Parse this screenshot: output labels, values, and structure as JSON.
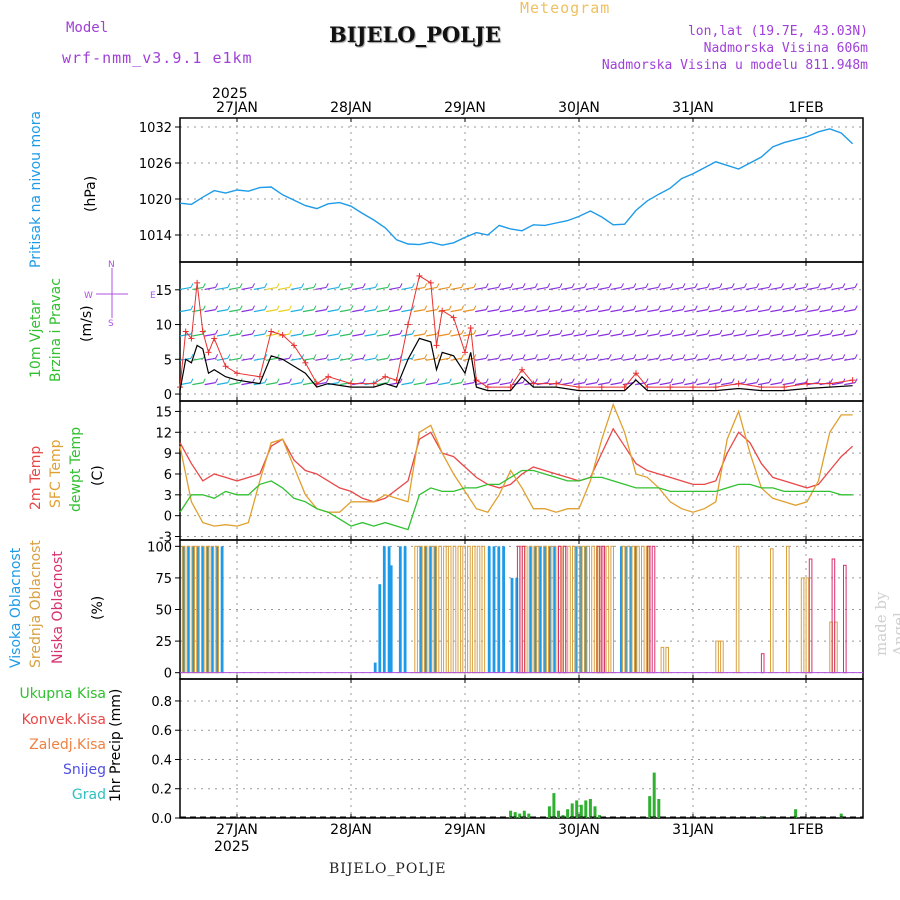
{
  "header": {
    "model_label": "Model",
    "model_name": "wrf-nmm_v3.9.1 e1km",
    "station": "BIJELO_POLJE",
    "product": "Meteogram",
    "coords": "lon,lat (19.7E, 43.03N)",
    "elevation": "Nadmorska Visina 606m",
    "model_elevation": "Nadmorska Visina u modelu 811.948m"
  },
  "dates": {
    "year_label": "2025",
    "labels": [
      "27JAN",
      "28JAN",
      "29JAN",
      "30JAN",
      "31JAN",
      "1FEB"
    ]
  },
  "footer": {
    "station": "BIJELO_POLJE"
  },
  "watermark": "made by Angel",
  "panels": {
    "pressure": {
      "label": "Pritisak na nivou mora",
      "unit": "(hPa)"
    },
    "wind": {
      "label_line1": "10m Vjetar",
      "label_line2": "Brzina i Pravac",
      "unit": "(m/s)",
      "compass": {
        "n": "N",
        "s": "S",
        "w": "W",
        "e": "E"
      }
    },
    "temp": {
      "label_2m": "2m Temp",
      "label_sfc": "SFC Temp",
      "label_dewpt": "dewpt Temp",
      "unit": "(C)"
    },
    "cloud": {
      "label_high": "Visoka Oblacnost",
      "label_mid": "Srednja Oblacnost",
      "label_low": "Niska Oblacnost",
      "unit": "(%)"
    },
    "precip": {
      "label": "1hr Precip (mm)",
      "legend": {
        "total": "Ukupna Kisa",
        "convective": "Konvek.Kisa",
        "frozen": "Zaledj.Kisa",
        "snow": "Snijeg",
        "graupel": "Grad"
      }
    }
  },
  "colors": {
    "pressure": "#1e9be8",
    "temp2m": "#e84848",
    "sfc": "#e0a030",
    "dewpt": "#30c030",
    "cloud_high": "#1e9be8",
    "cloud_mid": "#d8a040",
    "cloud_low": "#d8306c",
    "precip_total": "#30b030",
    "header_purple": "#a040d8",
    "wind_speed": "#000000",
    "wind_gust": "#e83030"
  },
  "chart_data": [
    {
      "type": "line",
      "name": "pressure",
      "ylabel": "(hPa)",
      "ylim": [
        1009.5,
        1033.5
      ],
      "yticks": [
        1014,
        1020,
        1026,
        1032
      ],
      "xlim": [
        -0.5,
        5.4
      ],
      "x": [
        -0.5,
        -0.4,
        -0.3,
        -0.2,
        -0.1,
        0.0,
        0.1,
        0.2,
        0.3,
        0.4,
        0.6,
        0.7,
        0.8,
        0.9,
        1.0,
        1.1,
        1.2,
        1.3,
        1.4,
        1.5,
        1.6,
        1.7,
        1.8,
        1.9,
        2.0,
        2.1,
        2.2,
        2.3,
        2.4,
        2.5,
        2.6,
        2.7,
        2.8,
        2.9,
        3.0,
        3.1,
        3.2,
        3.3,
        3.4,
        3.5,
        3.6,
        3.7,
        3.8,
        3.9,
        4.0,
        4.2,
        4.4,
        4.6,
        4.7,
        4.8,
        4.9,
        5.0,
        5.1,
        5.2,
        5.3,
        5.4
      ],
      "y": [
        1019.3,
        1019.1,
        1020.3,
        1021.4,
        1021.0,
        1021.5,
        1021.3,
        1021.9,
        1022.0,
        1020.7,
        1018.9,
        1018.4,
        1019.2,
        1019.4,
        1018.8,
        1017.6,
        1016.5,
        1015.2,
        1013.2,
        1012.5,
        1012.4,
        1012.8,
        1012.3,
        1012.7,
        1013.6,
        1014.4,
        1014.0,
        1015.6,
        1015.0,
        1014.7,
        1015.7,
        1015.6,
        1016.0,
        1016.4,
        1017.1,
        1018.0,
        1017.0,
        1015.7,
        1015.8,
        1018.1,
        1019.7,
        1020.8,
        1021.8,
        1023.4,
        1024.2,
        1026.2,
        1025.0,
        1027.0,
        1028.7,
        1029.4,
        1029.9,
        1030.4,
        1031.2,
        1031.7,
        1031.0,
        1029.2
      ]
    },
    {
      "type": "line",
      "name": "wind",
      "ylabel": "(m/s)",
      "ylim": [
        -1,
        19
      ],
      "yticks": [
        0,
        5,
        10,
        15
      ],
      "xlim": [
        -0.5,
        5.4
      ],
      "series": [
        {
          "key": "speed",
          "x": [
            -0.5,
            -0.45,
            -0.4,
            -0.35,
            -0.3,
            -0.25,
            -0.2,
            -0.1,
            0.0,
            0.2,
            0.3,
            0.4,
            0.5,
            0.6,
            0.7,
            0.8,
            1.0,
            1.2,
            1.3,
            1.4,
            1.5,
            1.6,
            1.7,
            1.75,
            1.8,
            1.9,
            2.0,
            2.05,
            2.1,
            2.2,
            2.4,
            2.5,
            2.6,
            2.8,
            3.0,
            3.2,
            3.4,
            3.5,
            3.6,
            3.8,
            4.0,
            4.2,
            4.4,
            4.6,
            4.8,
            5.0,
            5.2,
            5.4
          ],
          "y": [
            0.5,
            5.0,
            4.5,
            7.0,
            6.5,
            3.0,
            3.5,
            2.5,
            2.0,
            1.5,
            5.5,
            5.0,
            4.0,
            3.0,
            1.0,
            1.5,
            1.0,
            1.0,
            1.5,
            1.0,
            5.0,
            8.0,
            7.5,
            3.5,
            6.0,
            5.5,
            3.0,
            6.0,
            1.0,
            0.5,
            0.5,
            2.5,
            1.0,
            1.0,
            0.5,
            0.5,
            0.5,
            2.0,
            0.5,
            0.5,
            0.5,
            0.5,
            0.8,
            0.5,
            0.5,
            0.8,
            1.0,
            1.2
          ]
        },
        {
          "key": "gust",
          "x": [
            -0.5,
            -0.45,
            -0.4,
            -0.35,
            -0.3,
            -0.25,
            -0.2,
            -0.1,
            0.0,
            0.2,
            0.3,
            0.4,
            0.5,
            0.6,
            0.7,
            0.8,
            1.0,
            1.2,
            1.3,
            1.4,
            1.5,
            1.6,
            1.7,
            1.75,
            1.8,
            1.9,
            2.0,
            2.05,
            2.1,
            2.2,
            2.4,
            2.5,
            2.6,
            2.8,
            3.0,
            3.2,
            3.4,
            3.5,
            3.6,
            3.8,
            4.0,
            4.2,
            4.4,
            4.6,
            4.8,
            5.0,
            5.2,
            5.4
          ],
          "y": [
            1.0,
            9.0,
            8.0,
            16.0,
            9.0,
            6.0,
            8.0,
            4.0,
            3.0,
            2.5,
            9.0,
            8.5,
            7.0,
            4.5,
            1.5,
            2.5,
            1.5,
            1.5,
            2.5,
            2.0,
            10.0,
            17.0,
            16.0,
            7.0,
            12.0,
            11.0,
            6.0,
            9.5,
            2.0,
            1.0,
            1.0,
            3.5,
            1.5,
            1.5,
            1.0,
            1.0,
            1.0,
            3.0,
            1.0,
            1.0,
            1.0,
            1.0,
            1.5,
            1.0,
            1.0,
            1.5,
            1.5,
            2.0
          ]
        }
      ]
    },
    {
      "type": "line",
      "name": "temperature",
      "ylabel": "(C)",
      "ylim": [
        -3.5,
        16.5
      ],
      "yticks": [
        -3,
        0,
        3,
        6,
        9,
        12,
        15
      ],
      "xlim": [
        -0.5,
        5.4
      ],
      "series": [
        {
          "key": "t2m",
          "x": [
            -0.5,
            -0.4,
            -0.3,
            -0.2,
            -0.1,
            0.0,
            0.2,
            0.3,
            0.4,
            0.5,
            0.6,
            0.7,
            0.8,
            0.9,
            1.0,
            1.1,
            1.2,
            1.3,
            1.5,
            1.6,
            1.7,
            1.8,
            1.9,
            2.0,
            2.1,
            2.2,
            2.3,
            2.4,
            2.5,
            2.6,
            2.7,
            2.8,
            2.9,
            3.0,
            3.1,
            3.2,
            3.3,
            3.4,
            3.5,
            3.6,
            3.7,
            3.8,
            3.9,
            4.0,
            4.1,
            4.2,
            4.3,
            4.4,
            4.5,
            4.6,
            4.7,
            4.8,
            4.9,
            5.0,
            5.1,
            5.2,
            5.3,
            5.4
          ],
          "y": [
            10.5,
            7.5,
            5.0,
            6.0,
            5.5,
            5.0,
            6.0,
            10.0,
            11.0,
            8.0,
            6.5,
            6.0,
            5.0,
            4.0,
            3.5,
            2.5,
            2.0,
            2.5,
            5.0,
            11.0,
            12.0,
            9.0,
            8.5,
            7.0,
            5.5,
            4.5,
            4.0,
            4.5,
            6.0,
            7.0,
            6.5,
            6.0,
            5.5,
            5.0,
            5.5,
            9.0,
            12.5,
            10.0,
            7.5,
            6.5,
            6.0,
            5.5,
            5.0,
            4.5,
            4.5,
            5.0,
            9.0,
            12.0,
            10.5,
            7.5,
            5.5,
            5.0,
            4.5,
            4.0,
            4.5,
            6.5,
            8.5,
            10.0
          ]
        },
        {
          "key": "sfc",
          "x": [
            -0.5,
            -0.4,
            -0.3,
            -0.2,
            -0.1,
            0.0,
            0.1,
            0.2,
            0.3,
            0.4,
            0.5,
            0.6,
            0.7,
            0.8,
            0.9,
            1.0,
            1.1,
            1.2,
            1.3,
            1.5,
            1.6,
            1.7,
            1.8,
            1.9,
            2.0,
            2.1,
            2.2,
            2.3,
            2.4,
            2.5,
            2.6,
            2.7,
            2.8,
            2.9,
            3.0,
            3.1,
            3.2,
            3.3,
            3.4,
            3.5,
            3.6,
            3.7,
            3.8,
            3.9,
            4.0,
            4.1,
            4.2,
            4.3,
            4.4,
            4.5,
            4.6,
            4.7,
            4.8,
            4.9,
            5.0,
            5.1,
            5.2,
            5.3,
            5.4
          ],
          "y": [
            10.0,
            2.0,
            -1.0,
            -1.5,
            -1.3,
            -1.5,
            -1.0,
            5.0,
            10.5,
            11.0,
            7.0,
            3.0,
            1.0,
            0.5,
            0.5,
            2.0,
            2.0,
            2.0,
            3.0,
            2.0,
            12.0,
            13.0,
            9.0,
            6.0,
            3.5,
            1.0,
            0.5,
            3.0,
            6.5,
            4.0,
            1.0,
            1.0,
            0.5,
            1.0,
            1.0,
            5.0,
            11.0,
            16.0,
            12.0,
            6.0,
            5.5,
            4.0,
            2.0,
            1.0,
            0.5,
            1.0,
            2.0,
            11.0,
            15.0,
            9.0,
            4.0,
            2.5,
            2.0,
            1.5,
            2.0,
            5.0,
            12.0,
            14.5,
            14.5
          ]
        },
        {
          "key": "dewpt",
          "x": [
            -0.5,
            -0.4,
            -0.3,
            -0.2,
            -0.1,
            0.0,
            0.1,
            0.2,
            0.3,
            0.4,
            0.5,
            0.6,
            0.7,
            0.8,
            0.9,
            1.0,
            1.1,
            1.2,
            1.3,
            1.5,
            1.6,
            1.7,
            1.8,
            1.9,
            2.0,
            2.1,
            2.2,
            2.3,
            2.4,
            2.5,
            2.6,
            2.7,
            2.8,
            2.9,
            3.0,
            3.1,
            3.2,
            3.3,
            3.4,
            3.5,
            3.6,
            3.7,
            3.8,
            3.9,
            4.0,
            4.1,
            4.2,
            4.3,
            4.4,
            4.5,
            4.6,
            4.7,
            4.8,
            4.9,
            5.0,
            5.1,
            5.2,
            5.3,
            5.4
          ],
          "y": [
            0.5,
            3.0,
            3.0,
            2.5,
            3.5,
            3.0,
            3.0,
            4.5,
            5.0,
            4.0,
            2.5,
            2.0,
            1.0,
            0.5,
            -0.5,
            -1.5,
            -1.0,
            -1.5,
            -1.0,
            -2.0,
            3.0,
            4.0,
            3.5,
            3.5,
            4.0,
            4.0,
            4.5,
            4.5,
            5.5,
            6.5,
            6.5,
            6.0,
            5.5,
            5.0,
            5.0,
            5.5,
            5.5,
            5.0,
            4.5,
            4.0,
            4.0,
            4.0,
            3.5,
            3.5,
            3.5,
            3.5,
            3.5,
            4.0,
            4.5,
            4.5,
            4.0,
            4.0,
            3.5,
            3.5,
            3.5,
            3.5,
            3.5,
            3.0,
            3.0
          ]
        }
      ]
    },
    {
      "type": "bar",
      "name": "cloud_cover",
      "ylabel": "(%)",
      "ylim": [
        -5,
        105
      ],
      "yticks": [
        0,
        25,
        50,
        75,
        100
      ],
      "xlim": [
        -0.5,
        5.4
      ],
      "series": [
        {
          "key": "high",
          "segments": [
            {
              "x0": -0.48,
              "x1": -0.14,
              "value": 100
            },
            {
              "x0": 0.62,
              "x1": 0.88,
              "value": 0
            },
            {
              "x0": 1.2,
              "x1": 1.22,
              "value": 8
            },
            {
              "x0": 1.24,
              "x1": 1.28,
              "value": 70
            },
            {
              "x0": 1.28,
              "x1": 1.34,
              "value": 100
            },
            {
              "x0": 1.34,
              "x1": 1.38,
              "value": 85
            },
            {
              "x0": 1.42,
              "x1": 1.5,
              "value": 100
            },
            {
              "x0": 1.6,
              "x1": 1.76,
              "value": 100
            },
            {
              "x0": 2.2,
              "x1": 2.36,
              "value": 100
            },
            {
              "x0": 2.4,
              "x1": 2.46,
              "value": 75
            },
            {
              "x0": 2.56,
              "x1": 2.8,
              "value": 100
            },
            {
              "x0": 2.96,
              "x1": 3.08,
              "value": 100
            },
            {
              "x0": 3.36,
              "x1": 3.5,
              "value": 100
            }
          ]
        },
        {
          "key": "mid",
          "segments": [
            {
              "x0": -0.48,
              "x1": -0.18,
              "value": 100
            },
            {
              "x0": 1.56,
              "x1": 2.18,
              "value": 100
            },
            {
              "x0": 2.48,
              "x1": 3.32,
              "value": 100
            },
            {
              "x0": 3.38,
              "x1": 3.6,
              "value": 100
            },
            {
              "x0": 3.72,
              "x1": 3.8,
              "value": 20
            },
            {
              "x0": 4.2,
              "x1": 4.28,
              "value": 25
            },
            {
              "x0": 4.38,
              "x1": 4.42,
              "value": 100
            },
            {
              "x0": 4.68,
              "x1": 4.72,
              "value": 98
            },
            {
              "x0": 4.82,
              "x1": 4.86,
              "value": 100
            },
            {
              "x0": 4.95,
              "x1": 5.02,
              "value": 75
            },
            {
              "x0": 5.2,
              "x1": 5.26,
              "value": 40
            }
          ]
        },
        {
          "key": "low",
          "segments": [
            {
              "x0": 2.46,
              "x1": 2.52,
              "value": 100
            },
            {
              "x0": 2.82,
              "x1": 2.9,
              "value": 100
            },
            {
              "x0": 3.16,
              "x1": 3.24,
              "value": 100
            },
            {
              "x0": 3.6,
              "x1": 3.66,
              "value": 100
            },
            {
              "x0": 4.6,
              "x1": 4.64,
              "value": 15
            },
            {
              "x0": 5.02,
              "x1": 5.04,
              "value": 90
            },
            {
              "x0": 5.22,
              "x1": 5.24,
              "value": 90
            },
            {
              "x0": 5.32,
              "x1": 5.34,
              "value": 85
            }
          ]
        }
      ]
    },
    {
      "type": "bar",
      "name": "precip_1hr",
      "ylabel": "1hr Precip (mm)",
      "ylim": [
        0,
        0.95
      ],
      "yticks": [
        0.0,
        0.2,
        0.4,
        0.6,
        0.8
      ],
      "xlim": [
        -0.5,
        5.4
      ],
      "series": [
        {
          "key": "total",
          "x": [
            2.4,
            2.44,
            2.48,
            2.52,
            2.56,
            2.74,
            2.78,
            2.82,
            2.86,
            2.9,
            2.94,
            2.98,
            3.02,
            3.06,
            3.1,
            3.14,
            3.18,
            3.62,
            3.66,
            3.7,
            4.6,
            4.9,
            5.3
          ],
          "y": [
            0.05,
            0.04,
            0.03,
            0.05,
            0.03,
            0.08,
            0.17,
            0.05,
            0.02,
            0.06,
            0.1,
            0.12,
            0.09,
            0.12,
            0.13,
            0.08,
            0.02,
            0.15,
            0.31,
            0.13,
            0.01,
            0.06,
            0.03
          ]
        }
      ]
    }
  ]
}
